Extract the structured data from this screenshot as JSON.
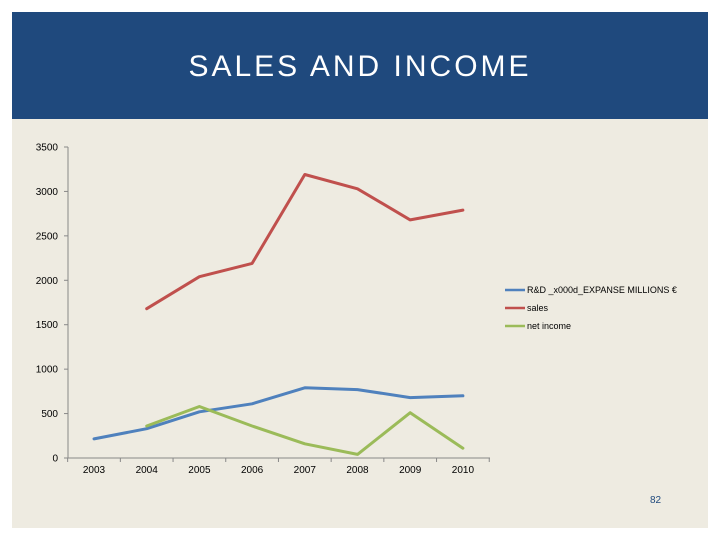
{
  "slide": {
    "title": "SALES AND INCOME",
    "page_number": "82",
    "colors": {
      "title_band": "#1f497d",
      "background": "#eeebe1"
    }
  },
  "chart_data": {
    "type": "line",
    "categories": [
      "2003",
      "2004",
      "2005",
      "2006",
      "2007",
      "2008",
      "2009",
      "2010"
    ],
    "ylim": [
      0,
      3500
    ],
    "yticks": [
      0,
      500,
      1000,
      1500,
      2000,
      2500,
      3000,
      3500
    ],
    "grid": false,
    "legend_position": "right",
    "series": [
      {
        "name": "R&D _x000d_EXPANSE MILLIONS €",
        "color": "#4f81bd",
        "values": [
          215,
          330,
          520,
          610,
          790,
          770,
          680,
          700
        ]
      },
      {
        "name": "sales",
        "color": "#c0504d",
        "values": [
          null,
          1680,
          2040,
          2190,
          3190,
          3030,
          2680,
          2790
        ]
      },
      {
        "name": "net income",
        "color": "#9bbb59",
        "values": [
          null,
          360,
          580,
          360,
          160,
          40,
          510,
          110
        ]
      }
    ]
  }
}
